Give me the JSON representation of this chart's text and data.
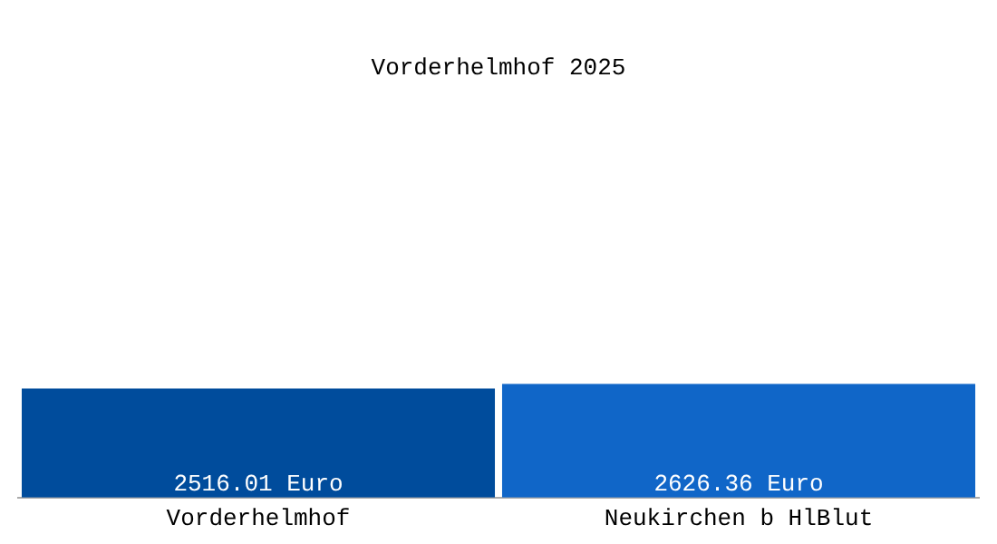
{
  "chart_data": {
    "type": "bar",
    "title": "Vorderhelmhof 2025",
    "categories": [
      "Vorderhelmhof",
      "Neukirchen b HlBlut"
    ],
    "values": [
      2516.01,
      2626.36
    ],
    "colors": [
      "#004c9c",
      "#1066c8"
    ],
    "value_labels": [
      "2516.01 Euro",
      "2626.36 Euro"
    ],
    "tick_labels": "x",
    "grid": false,
    "legend": false
  }
}
